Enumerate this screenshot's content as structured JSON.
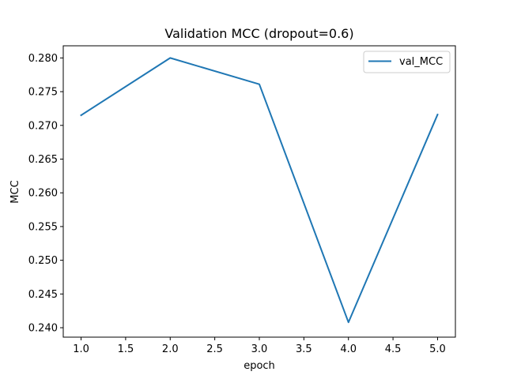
{
  "chart_data": {
    "type": "line",
    "title": "Validation MCC (dropout=0.6)",
    "xlabel": "epoch",
    "ylabel": "MCC",
    "x": [
      1.0,
      2.0,
      3.0,
      4.0,
      5.0
    ],
    "series": [
      {
        "name": "val_MCC",
        "color": "#1f77b4",
        "values": [
          0.2715,
          0.28,
          0.2761,
          0.2408,
          0.2716
        ]
      }
    ],
    "xlim": [
      0.8,
      5.2
    ],
    "ylim": [
      0.2386,
      0.2818
    ],
    "xticks": [
      1.0,
      1.5,
      2.0,
      2.5,
      3.0,
      3.5,
      4.0,
      4.5,
      5.0
    ],
    "xtick_labels": [
      "1.0",
      "1.5",
      "2.0",
      "2.5",
      "3.0",
      "3.5",
      "4.0",
      "4.5",
      "5.0"
    ],
    "yticks": [
      0.24,
      0.245,
      0.25,
      0.255,
      0.26,
      0.265,
      0.27,
      0.275,
      0.28
    ],
    "ytick_labels": [
      "0.240",
      "0.245",
      "0.250",
      "0.255",
      "0.260",
      "0.265",
      "0.270",
      "0.275",
      "0.280"
    ],
    "grid": false,
    "legend_position": "top-right"
  }
}
